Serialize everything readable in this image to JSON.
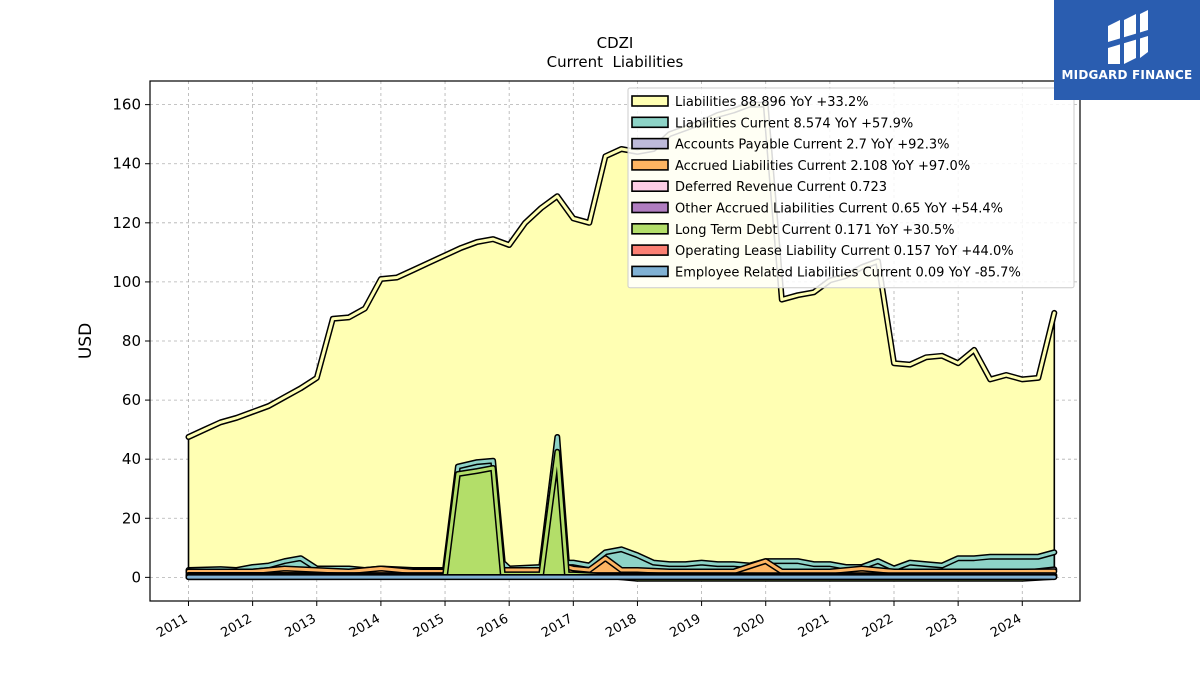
{
  "brand": {
    "name": "MIDGARD FINANCE",
    "bg_color": "#2a5db0"
  },
  "chart_data": {
    "type": "area",
    "title": "CDZI",
    "subtitle": "Current  Liabilities",
    "ylabel": "USD",
    "xlabel": "",
    "ylim": [
      -8,
      168
    ],
    "xlim": [
      2010.4,
      2024.9
    ],
    "yticks": [
      0,
      20,
      40,
      60,
      80,
      100,
      120,
      140,
      160
    ],
    "xticks": [
      "2011",
      "2012",
      "2013",
      "2014",
      "2015",
      "2016",
      "2017",
      "2018",
      "2019",
      "2020",
      "2021",
      "2022",
      "2023",
      "2024"
    ],
    "grid": true,
    "legend_position": "top-right",
    "series": [
      {
        "name": "Liabilities  88.896 YoY +33.2%",
        "color": "#ffffb3",
        "points": [
          [
            2011.0,
            47.5
          ],
          [
            2011.25,
            50.0
          ],
          [
            2011.5,
            52.5
          ],
          [
            2011.75,
            54.0
          ],
          [
            2012.0,
            56.0
          ],
          [
            2012.25,
            58.0
          ],
          [
            2012.5,
            61.0
          ],
          [
            2012.75,
            64.0
          ],
          [
            2013.0,
            67.5
          ],
          [
            2013.25,
            87.5
          ],
          [
            2013.5,
            88.0
          ],
          [
            2013.75,
            91.0
          ],
          [
            2014.0,
            101.0
          ],
          [
            2014.25,
            101.5
          ],
          [
            2014.5,
            104.0
          ],
          [
            2014.75,
            106.5
          ],
          [
            2015.0,
            109.0
          ],
          [
            2015.25,
            111.5
          ],
          [
            2015.5,
            113.5
          ],
          [
            2015.75,
            114.5
          ],
          [
            2016.0,
            112.5
          ],
          [
            2016.25,
            120.0
          ],
          [
            2016.5,
            125.0
          ],
          [
            2016.75,
            129.0
          ],
          [
            2017.0,
            121.5
          ],
          [
            2017.25,
            120.0
          ],
          [
            2017.5,
            142.5
          ],
          [
            2017.75,
            145.0
          ],
          [
            2018.0,
            144.0
          ],
          [
            2018.25,
            145.0
          ],
          [
            2018.5,
            150.0
          ],
          [
            2018.75,
            152.0
          ],
          [
            2019.0,
            154.0
          ],
          [
            2019.25,
            156.5
          ],
          [
            2019.5,
            158.0
          ],
          [
            2019.75,
            160.0
          ],
          [
            2020.0,
            160.0
          ],
          [
            2020.25,
            94.0
          ],
          [
            2020.5,
            95.5
          ],
          [
            2020.75,
            96.5
          ],
          [
            2021.0,
            100.5
          ],
          [
            2021.25,
            102.0
          ],
          [
            2021.5,
            105.0
          ],
          [
            2021.75,
            107.0
          ],
          [
            2022.0,
            72.5
          ],
          [
            2022.25,
            72.0
          ],
          [
            2022.5,
            74.5
          ],
          [
            2022.75,
            75.0
          ],
          [
            2023.0,
            72.5
          ],
          [
            2023.25,
            77.0
          ],
          [
            2023.5,
            67.0
          ],
          [
            2023.75,
            68.5
          ],
          [
            2024.0,
            67.0
          ],
          [
            2024.25,
            67.5
          ],
          [
            2024.5,
            89.5
          ]
        ]
      },
      {
        "name": "Liabilities Current  8.574 YoY +57.9%",
        "color": "#8dd3c7",
        "points": [
          [
            2011.0,
            2.5
          ],
          [
            2011.5,
            2.8
          ],
          [
            2011.75,
            2.5
          ],
          [
            2012.0,
            3.5
          ],
          [
            2012.25,
            4.0
          ],
          [
            2012.5,
            5.5
          ],
          [
            2012.75,
            6.5
          ],
          [
            2013.0,
            3.0
          ],
          [
            2013.5,
            3.0
          ],
          [
            2013.75,
            2.5
          ],
          [
            2014.0,
            3.0
          ],
          [
            2014.5,
            2.5
          ],
          [
            2015.0,
            2.5
          ],
          [
            2015.2,
            37.5
          ],
          [
            2015.5,
            39.0
          ],
          [
            2015.75,
            39.5
          ],
          [
            2015.9,
            5.0
          ],
          [
            2016.0,
            3.0
          ],
          [
            2016.5,
            3.5
          ],
          [
            2016.75,
            47.5
          ],
          [
            2016.9,
            5.0
          ],
          [
            2017.0,
            5.0
          ],
          [
            2017.25,
            4.0
          ],
          [
            2017.5,
            8.5
          ],
          [
            2017.75,
            9.5
          ],
          [
            2018.0,
            7.5
          ],
          [
            2018.25,
            5.0
          ],
          [
            2018.5,
            4.5
          ],
          [
            2018.75,
            4.5
          ],
          [
            2019.0,
            5.0
          ],
          [
            2019.25,
            4.5
          ],
          [
            2019.5,
            4.5
          ],
          [
            2019.75,
            4.0
          ],
          [
            2020.0,
            5.5
          ],
          [
            2020.5,
            5.5
          ],
          [
            2020.75,
            4.5
          ],
          [
            2021.0,
            4.5
          ],
          [
            2021.25,
            3.5
          ],
          [
            2021.5,
            3.5
          ],
          [
            2021.75,
            5.5
          ],
          [
            2022.0,
            3.0
          ],
          [
            2022.25,
            5.0
          ],
          [
            2022.5,
            4.5
          ],
          [
            2022.75,
            4.0
          ],
          [
            2023.0,
            6.5
          ],
          [
            2023.25,
            6.5
          ],
          [
            2023.5,
            7.0
          ],
          [
            2023.75,
            7.0
          ],
          [
            2024.0,
            7.0
          ],
          [
            2024.25,
            7.0
          ],
          [
            2024.5,
            8.5
          ]
        ]
      },
      {
        "name": "Accounts Payable Current  2.7 YoY +92.3%",
        "color": "#bebada",
        "points": [
          [
            2011.0,
            1.5
          ],
          [
            2012.0,
            1.5
          ],
          [
            2013.0,
            1.5
          ],
          [
            2014.0,
            1.5
          ],
          [
            2015.0,
            1.5
          ],
          [
            2016.0,
            1.5
          ],
          [
            2017.0,
            1.5
          ],
          [
            2018.0,
            1.8
          ],
          [
            2019.0,
            1.5
          ],
          [
            2020.0,
            1.5
          ],
          [
            2021.0,
            1.5
          ],
          [
            2022.0,
            1.5
          ],
          [
            2023.0,
            1.5
          ],
          [
            2024.0,
            1.5
          ],
          [
            2024.5,
            2.7
          ]
        ]
      },
      {
        "name": "Accrued Liabilities Current  2.108 YoY +97.0%",
        "color": "#fdb462",
        "points": [
          [
            2011.0,
            2.0
          ],
          [
            2011.5,
            2.0
          ],
          [
            2012.0,
            2.0
          ],
          [
            2012.5,
            3.0
          ],
          [
            2013.0,
            2.5
          ],
          [
            2013.5,
            2.0
          ],
          [
            2014.0,
            3.0
          ],
          [
            2014.5,
            2.0
          ],
          [
            2015.0,
            2.0
          ],
          [
            2015.5,
            2.5
          ],
          [
            2016.0,
            2.5
          ],
          [
            2016.5,
            2.5
          ],
          [
            2016.75,
            4.5
          ],
          [
            2017.0,
            3.0
          ],
          [
            2017.25,
            2.5
          ],
          [
            2017.5,
            6.5
          ],
          [
            2017.75,
            2.5
          ],
          [
            2018.0,
            2.5
          ],
          [
            2018.5,
            2.0
          ],
          [
            2019.0,
            2.0
          ],
          [
            2019.5,
            2.0
          ],
          [
            2020.0,
            5.5
          ],
          [
            2020.25,
            2.0
          ],
          [
            2020.5,
            2.0
          ],
          [
            2021.0,
            2.0
          ],
          [
            2021.5,
            3.0
          ],
          [
            2022.0,
            2.0
          ],
          [
            2022.5,
            2.0
          ],
          [
            2023.0,
            2.0
          ],
          [
            2023.5,
            2.0
          ],
          [
            2024.0,
            2.0
          ],
          [
            2024.5,
            2.1
          ]
        ]
      },
      {
        "name": "Deferred Revenue Current  0.723",
        "color": "#fccde5",
        "points": [
          [
            2011.0,
            0.8
          ],
          [
            2024.5,
            0.7
          ]
        ]
      },
      {
        "name": "Other Accrued Liabilities Current  0.65 YoY +54.4%",
        "color": "#b07dbf",
        "points": [
          [
            2011.0,
            0.5
          ],
          [
            2024.5,
            0.65
          ]
        ]
      },
      {
        "name": "Long Term Debt Current  0.171 YoY +30.5%",
        "color": "#b3de69",
        "points": [
          [
            2011.0,
            0.5
          ],
          [
            2015.0,
            0.5
          ],
          [
            2015.2,
            35.0
          ],
          [
            2015.5,
            36.0
          ],
          [
            2015.75,
            37.0
          ],
          [
            2015.9,
            1.0
          ],
          [
            2016.0,
            1.0
          ],
          [
            2016.5,
            1.0
          ],
          [
            2016.75,
            42.5
          ],
          [
            2016.9,
            1.0
          ],
          [
            2017.0,
            1.0
          ],
          [
            2017.5,
            0.5
          ],
          [
            2018.0,
            -0.5
          ],
          [
            2019.0,
            -0.5
          ],
          [
            2020.0,
            -0.5
          ],
          [
            2021.0,
            -0.5
          ],
          [
            2022.0,
            -0.5
          ],
          [
            2023.0,
            -0.5
          ],
          [
            2024.0,
            -0.5
          ],
          [
            2024.5,
            0.17
          ]
        ]
      },
      {
        "name": "Operating Lease Liability Current  0.157 YoY +44.0%",
        "color": "#fb8072",
        "points": [
          [
            2011.0,
            0.1
          ],
          [
            2024.5,
            0.16
          ]
        ]
      },
      {
        "name": "Employee Related Liabilities Current  0.09 YoY -85.7%",
        "color": "#80b1d3",
        "points": [
          [
            2011.0,
            0.1
          ],
          [
            2024.5,
            0.09
          ]
        ]
      }
    ]
  }
}
